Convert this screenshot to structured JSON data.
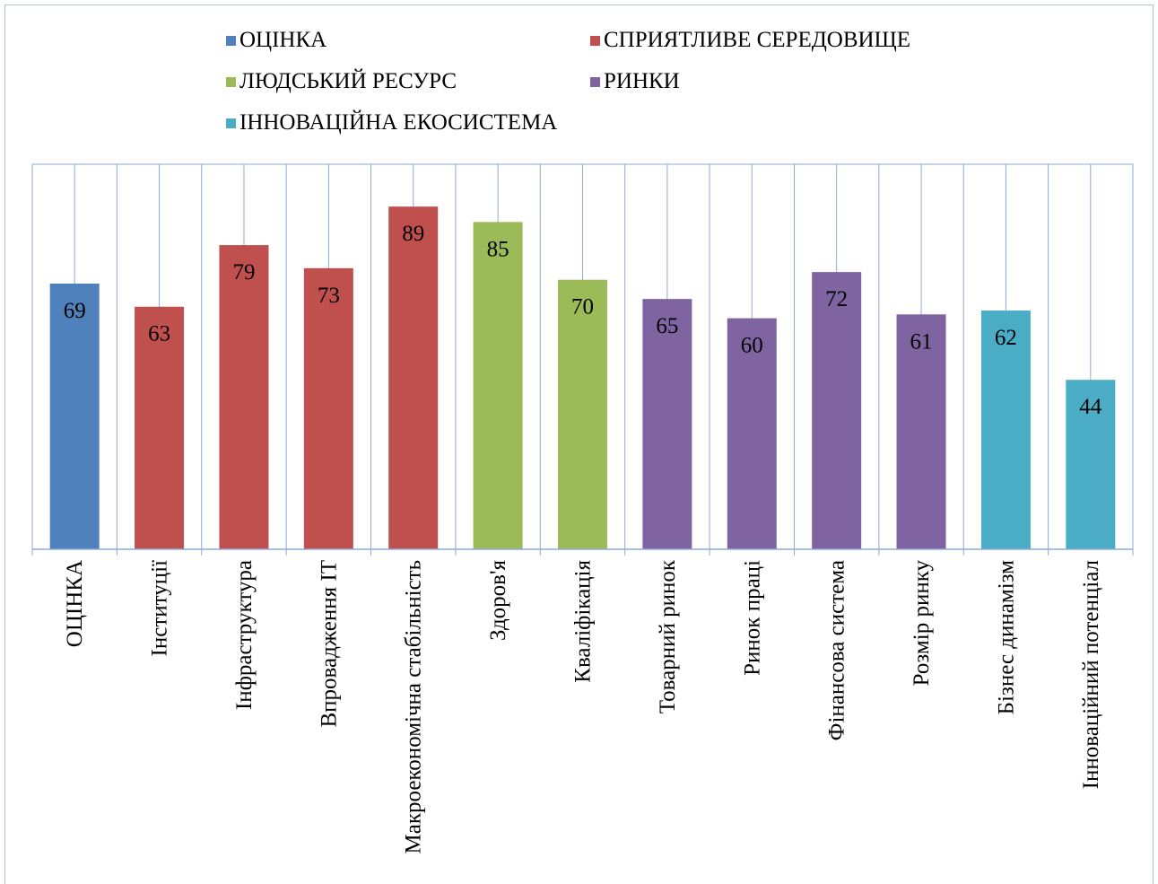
{
  "chart_data": {
    "type": "bar",
    "categories": [
      "ОЦІНКА",
      "Інституції",
      "Інфраструктура",
      "Впровадження ІТ",
      "Макроекономічна стабільність",
      "Здоров'я",
      "Кваліфікація",
      "Товарний ринок",
      "Ринок праці",
      "Фінансова система",
      "Розмір ринку",
      "Бізнес динамізм",
      "Інноваційний потенціал"
    ],
    "values": [
      69,
      63,
      79,
      73,
      89,
      85,
      70,
      65,
      60,
      72,
      61,
      62,
      44
    ],
    "groups": [
      "ОЦІНКА",
      "СПРИЯТЛИВЕ СЕРЕДОВИЩЕ",
      "СПРИЯТЛИВЕ СЕРЕДОВИЩЕ",
      "СПРИЯТЛИВЕ СЕРЕДОВИЩЕ",
      "СПРИЯТЛИВЕ СЕРЕДОВИЩЕ",
      "ЛЮДСЬКИЙ РЕСУРС",
      "ЛЮДСЬКИЙ РЕСУРС",
      "РИНКИ",
      "РИНКИ",
      "РИНКИ",
      "РИНКИ",
      "ІННОВАЦІЙНА ЕКОСИСТЕМА",
      "ІННОВАЦІЙНА ЕКОСИСТЕМА"
    ],
    "legend": [
      {
        "name": "ОЦІНКА",
        "color": "#4f81bd"
      },
      {
        "name": "СПРИЯТЛИВЕ СЕРЕДОВИЩЕ",
        "color": "#c0504d"
      },
      {
        "name": "ЛЮДСЬКИЙ РЕСУРС",
        "color": "#9bbb59"
      },
      {
        "name": "РИНКИ",
        "color": "#8064a2"
      },
      {
        "name": "ІННОВАЦІЙНА ЕКОСИСТЕМА",
        "color": "#4bacc6"
      }
    ],
    "legend_position": "top",
    "ylim": [
      0,
      100
    ],
    "grid": "vertical",
    "data_labels": true,
    "title": "",
    "xlabel": "",
    "ylabel": ""
  }
}
